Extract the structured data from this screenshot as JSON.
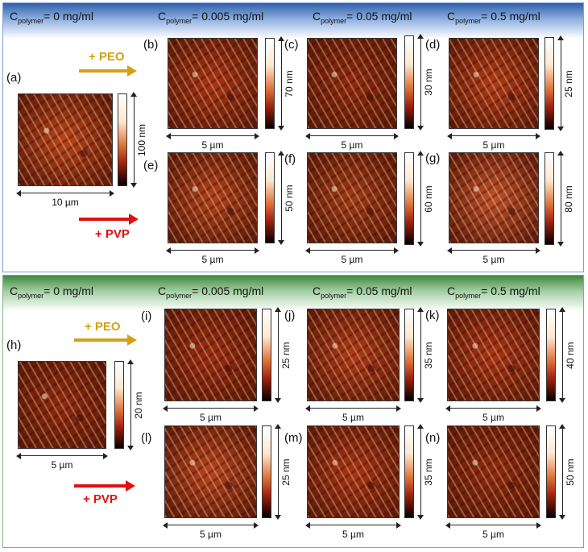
{
  "sections": [
    {
      "headers": [
        "0 mg/ml",
        "0.005 mg/ml",
        "0.05 mg/ml",
        "0.5 mg/ml"
      ]
    },
    {
      "headers": [
        "0 mg/ml",
        "0.005 mg/ml",
        "0.05 mg/ml",
        "0.5 mg/ml"
      ]
    }
  ],
  "header_prefix": "C",
  "header_sub": "polymer",
  "header_eq": "= ",
  "arrows": {
    "peo": "+ PEO",
    "pvp": "+ PVP",
    "peo_color": "#d4a017",
    "pvp_color": "#e01010"
  },
  "panels": [
    {
      "label": "(a)",
      "height": "100 nm",
      "scale": "10 µm"
    },
    {
      "label": "(b)",
      "height": "70 nm",
      "scale": "5 µm"
    },
    {
      "label": "(c)",
      "height": "30 nm",
      "scale": "5 µm"
    },
    {
      "label": "(d)",
      "height": "25 nm",
      "scale": "5 µm"
    },
    {
      "label": "(e)",
      "height": "50 nm",
      "scale": "5 µm"
    },
    {
      "label": "(f)",
      "height": "60 nm",
      "scale": "5 µm"
    },
    {
      "label": "(g)",
      "height": "80 nm",
      "scale": "5 µm"
    },
    {
      "label": "(h)",
      "height": "20 nm",
      "scale": "5 µm"
    },
    {
      "label": "(i)",
      "height": "25 nm",
      "scale": "5 µm"
    },
    {
      "label": "(j)",
      "height": "35 nm",
      "scale": "5 µm"
    },
    {
      "label": "(k)",
      "height": "40 nm",
      "scale": "5 µm"
    },
    {
      "label": "(l)",
      "height": "25 nm",
      "scale": "5 µm"
    },
    {
      "label": "(m)",
      "height": "35 nm",
      "scale": "5 µm"
    },
    {
      "label": "(n)",
      "height": "50 nm",
      "scale": "5 µm"
    }
  ]
}
